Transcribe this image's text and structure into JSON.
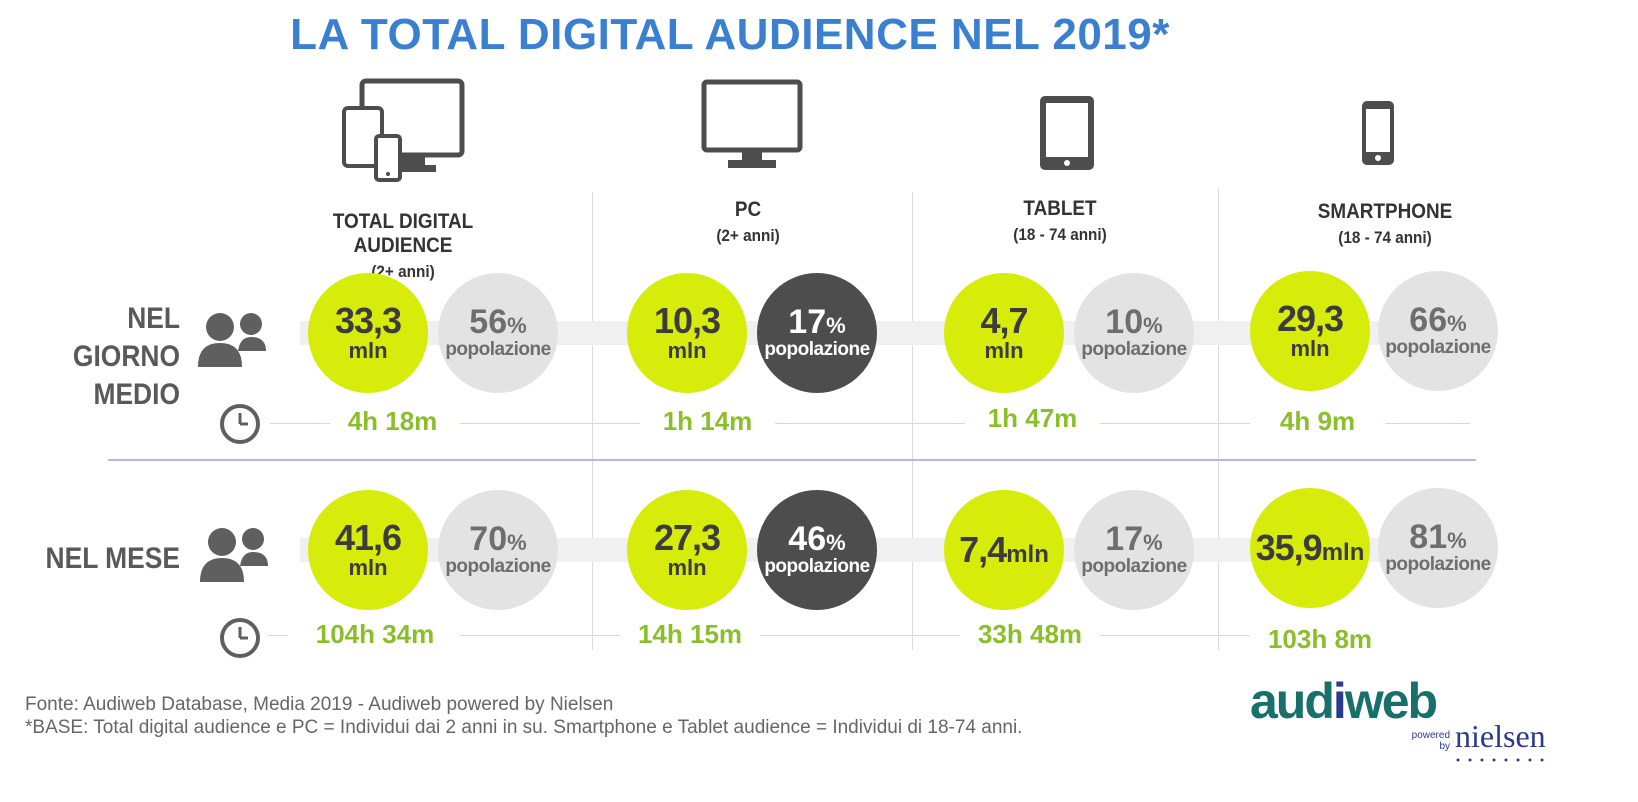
{
  "title": "LA TOTAL DIGITAL AUDIENCE NEL 2019*",
  "columns": [
    {
      "name": "TOTAL DIGITAL AUDIENCE",
      "sub": "(2+ anni)",
      "icon": "multi-device-icon"
    },
    {
      "name": "PC",
      "sub": "(2+ anni)",
      "icon": "monitor-icon"
    },
    {
      "name": "TABLET",
      "sub": "(18 - 74 anni)",
      "icon": "tablet-icon"
    },
    {
      "name": "SMARTPHONE",
      "sub": "(18 - 74 anni)",
      "icon": "smartphone-icon"
    }
  ],
  "rows": {
    "day": {
      "label_line1": "NEL GIORNO",
      "label_line2": "MEDIO",
      "cells": [
        {
          "value": "33,3",
          "unit": "mln",
          "pct": "56",
          "time": "4h 18m"
        },
        {
          "value": "10,3",
          "unit": "mln",
          "pct": "17",
          "time": "1h 14m"
        },
        {
          "value": "4,7",
          "unit": "mln",
          "pct": "10",
          "time": "1h 47m"
        },
        {
          "value": "29,3",
          "unit": "mln",
          "pct": "66",
          "time": "4h 9m"
        }
      ]
    },
    "month": {
      "label": "NEL MESE",
      "cells": [
        {
          "value": "41,6",
          "unit": "mln",
          "pct": "70",
          "time": "104h 34m"
        },
        {
          "value": "27,3",
          "unit": "mln",
          "pct": "46",
          "time": "14h 15m"
        },
        {
          "value": "7,4",
          "unit": "mln",
          "pct": "17",
          "time": "33h 48m"
        },
        {
          "value": "35,9",
          "unit": "mln",
          "pct": "81",
          "time": "103h 8m"
        }
      ]
    }
  },
  "pct_sign": "%",
  "pop_label": "popolazione",
  "footer": {
    "source": "Fonte: Audiweb Database, Media 2019 - Audiweb powered by Nielsen",
    "base": "*BASE: Total digital audience e PC = Individui dai 2 anni in su. Smartphone e Tablet audience = Individui di 18-74 anni."
  },
  "logo": {
    "aud": "aud",
    "i": "i",
    "web": "web",
    "powered": "powered",
    "by": "by",
    "nielsen": "nielsen"
  },
  "colors": {
    "title": "#3a7fd0",
    "reach_circle": "#d7ec0a",
    "pct_circle": "#e3e3e3",
    "pct_circle_pc": "#4d4d4d",
    "time_text": "#8bbf2a"
  }
}
